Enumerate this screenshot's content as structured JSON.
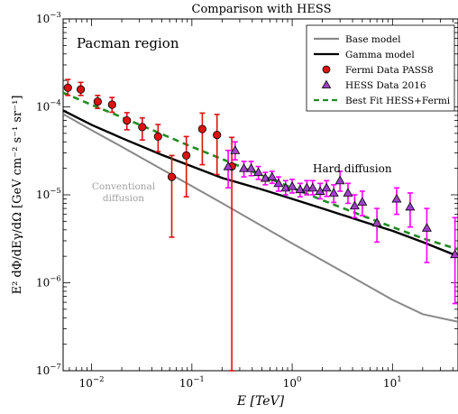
{
  "chart_data": {
    "type": "scatter",
    "title": "Comparison with HESS",
    "xlabel": "E [TeV]",
    "ylabel": "E² dΦ/dEγ/dΩ [GeV cm⁻² s⁻¹ sr⁻¹]",
    "x_scale": "log",
    "y_scale": "log",
    "xlim": [
      0.0052,
      45
    ],
    "ylim": [
      1e-07,
      0.001
    ],
    "grid": false,
    "legend_position": "top-right",
    "x_ticks": [
      {
        "value": 0.01,
        "base": "10",
        "exp": "−2"
      },
      {
        "value": 0.1,
        "base": "10",
        "exp": "−1"
      },
      {
        "value": 1,
        "base": "10",
        "exp": "0"
      },
      {
        "value": 10,
        "base": "10",
        "exp": "1"
      }
    ],
    "y_ticks": [
      {
        "value": 1e-07,
        "base": "10",
        "exp": "−7"
      },
      {
        "value": 1e-06,
        "base": "10",
        "exp": "−6"
      },
      {
        "value": 1e-05,
        "base": "10",
        "exp": "−5"
      },
      {
        "value": 0.0001,
        "base": "10",
        "exp": "−4"
      },
      {
        "value": 0.001,
        "base": "10",
        "exp": "−3"
      }
    ],
    "annotations": {
      "region": "Pacman region",
      "hard": "Hard diffusion",
      "conventional_1": "Conventional",
      "conventional_2": "diffusion"
    },
    "series": [
      {
        "name": "Base model",
        "kind": "line",
        "color": "#888888",
        "x": [
          0.0052,
          0.0101,
          0.0202,
          0.0503,
          0.101,
          0.201,
          0.502,
          1.0,
          2.0,
          5.0,
          10.0,
          20.0,
          45.0
        ],
        "y": [
          8.3e-05,
          5.4e-05,
          3.5e-05,
          1.95e-05,
          1.25e-05,
          8e-06,
          4.4e-06,
          2.8e-06,
          1.8e-06,
          1e-06,
          6.4e-07,
          4.4e-07,
          3.6e-07
        ]
      },
      {
        "name": "Gamma model",
        "kind": "line",
        "color": "#000000",
        "x": [
          0.0052,
          0.0101,
          0.0202,
          0.0503,
          0.101,
          0.201,
          0.502,
          1.0,
          2.0,
          5.0,
          10.0,
          20.0,
          45.0
        ],
        "y": [
          9.1e-05,
          6.2e-05,
          4.4e-05,
          2.85e-05,
          2.1e-05,
          1.55e-05,
          1.15e-05,
          9e-06,
          7e-06,
          5e-06,
          3.9e-06,
          2.9e-06,
          2e-06
        ]
      },
      {
        "name": "Fermi Data PASS8",
        "kind": "points",
        "marker": "circle",
        "color": "#dd1111",
        "error_color": "#dd1111",
        "x": [
          0.0058,
          0.0078,
          0.0115,
          0.016,
          0.0225,
          0.032,
          0.046,
          0.063,
          0.088,
          0.127,
          0.178,
          0.25
        ],
        "y": [
          0.000165,
          0.000158,
          0.000115,
          0.000106,
          7e-05,
          5.9e-05,
          4.6e-05,
          1.6e-05,
          2.8e-05,
          5.6e-05,
          4.8e-05,
          2.1e-05
        ],
        "ylo": [
          0.000135,
          0.000135,
          9.6e-05,
          8.7e-05,
          5.5e-05,
          4.2e-05,
          3.1e-05,
          3.3e-06,
          9.5e-06,
          2.2e-05,
          1.7e-05,
          1e-07
        ],
        "yhi": [
          0.000205,
          0.00019,
          0.000135,
          0.000128,
          8.6e-05,
          7.5e-05,
          6.3e-05,
          2.8e-05,
          4.6e-05,
          8.5e-05,
          8.2e-05,
          4.5e-05
        ]
      },
      {
        "name": "HESS Data 2016",
        "kind": "points",
        "marker": "triangle",
        "color": "#a040c8",
        "error_color": "#ff00ff",
        "x": [
          0.23,
          0.27,
          0.33,
          0.39,
          0.46,
          0.54,
          0.63,
          0.73,
          0.86,
          1.0,
          1.2,
          1.4,
          1.6,
          1.9,
          2.2,
          2.6,
          3.0,
          3.6,
          4.2,
          5.0,
          7.0,
          11.0,
          15.0,
          22.0,
          42.0
        ],
        "y": [
          2.1e-05,
          3.2e-05,
          2e-05,
          2e-05,
          1.8e-05,
          1.55e-05,
          1.6e-05,
          1.35e-05,
          1.2e-05,
          1.25e-05,
          1.15e-05,
          1.2e-05,
          1.2e-05,
          1.1e-05,
          1.2e-05,
          1.05e-05,
          1.45e-05,
          1.05e-05,
          7.5e-06,
          8.3e-06,
          4.8e-06,
          9e-06,
          7.3e-06,
          4.2e-06,
          2.1e-06
        ],
        "ylo": [
          1.2e-05,
          2.5e-05,
          1.6e-05,
          1.65e-05,
          1.5e-05,
          1.3e-05,
          1.35e-05,
          1.1e-05,
          1e-05,
          1.05e-05,
          9.5e-06,
          1e-05,
          1e-05,
          9e-06,
          9.6e-06,
          8.2e-06,
          1.1e-05,
          8e-06,
          5.5e-06,
          5.8e-06,
          2.9e-06,
          6e-06,
          4.3e-06,
          1.7e-06,
          5.8e-07
        ],
        "yhi": [
          3.2e-05,
          4e-05,
          2.4e-05,
          2.4e-05,
          2.1e-05,
          1.8e-05,
          1.85e-05,
          1.6e-05,
          1.45e-05,
          1.5e-05,
          1.35e-05,
          1.45e-05,
          1.45e-05,
          1.35e-05,
          1.45e-05,
          1.3e-05,
          1.85e-05,
          1.35e-05,
          1e-05,
          1.1e-05,
          7e-06,
          1.2e-05,
          1.05e-05,
          7e-06,
          5.5e-06
        ]
      },
      {
        "name": "Best Fit HESS+Fermi",
        "kind": "dashed",
        "color": "#228b22",
        "x": [
          0.0052,
          0.0101,
          0.0202,
          0.0503,
          0.101,
          0.201,
          0.502,
          1.0,
          2.0,
          5.0,
          10.0,
          20.0,
          45.0
        ],
        "y": [
          0.000145,
          0.000105,
          7.6e-05,
          4.9e-05,
          3.5e-05,
          2.55e-05,
          1.65e-05,
          1.2e-05,
          8.7e-06,
          5.8e-06,
          4.3e-06,
          3.2e-06,
          2.4e-06
        ]
      }
    ]
  }
}
